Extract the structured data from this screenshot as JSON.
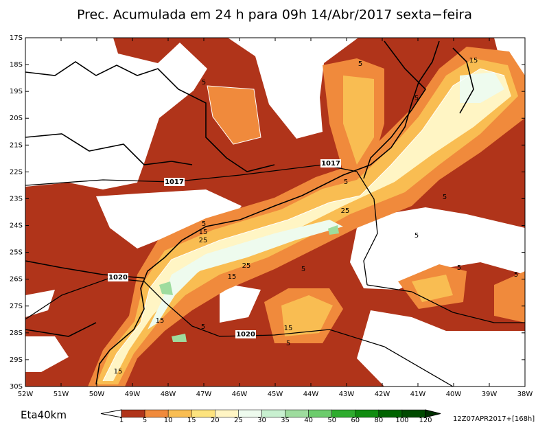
{
  "header": {
    "title": "Prec. Acumulada em 24 h para 09h 14/Abr/2017 sexta−feira"
  },
  "map": {
    "lat_labels": [
      "17S",
      "18S",
      "19S",
      "20S",
      "21S",
      "22S",
      "23S",
      "24S",
      "25S",
      "26S",
      "27S",
      "28S",
      "29S",
      "30S"
    ],
    "lon_labels": [
      "52W",
      "51W",
      "50W",
      "49W",
      "48W",
      "47W",
      "46W",
      "45W",
      "44W",
      "43W",
      "42W",
      "41W",
      "40W",
      "39W",
      "38W"
    ],
    "isobar_labels": [
      "1017",
      "1017",
      "1020",
      "1020"
    ],
    "contour_labels": [
      "5",
      "5",
      "5",
      "5",
      "5",
      "5",
      "5",
      "5",
      "5",
      "5",
      "5",
      "15",
      "15",
      "15",
      "15",
      "15",
      "15",
      "25",
      "25",
      "25",
      "5"
    ]
  },
  "footer": {
    "model": "Eta40km",
    "run": "12Z07APR2017+[168h]"
  },
  "colorbar": {
    "labels": [
      1,
      5,
      10,
      15,
      20,
      25,
      30,
      35,
      40,
      50,
      60,
      80,
      100,
      120
    ],
    "colors": [
      "#ffffff",
      "#b0341a",
      "#f08a3c",
      "#f9bd52",
      "#fde37e",
      "#fff5c4",
      "#eefbee",
      "#c8f0d0",
      "#9edc9e",
      "#6ccc6c",
      "#2eac2e",
      "#108c10",
      "#006400",
      "#004a00",
      "#003000"
    ]
  }
}
